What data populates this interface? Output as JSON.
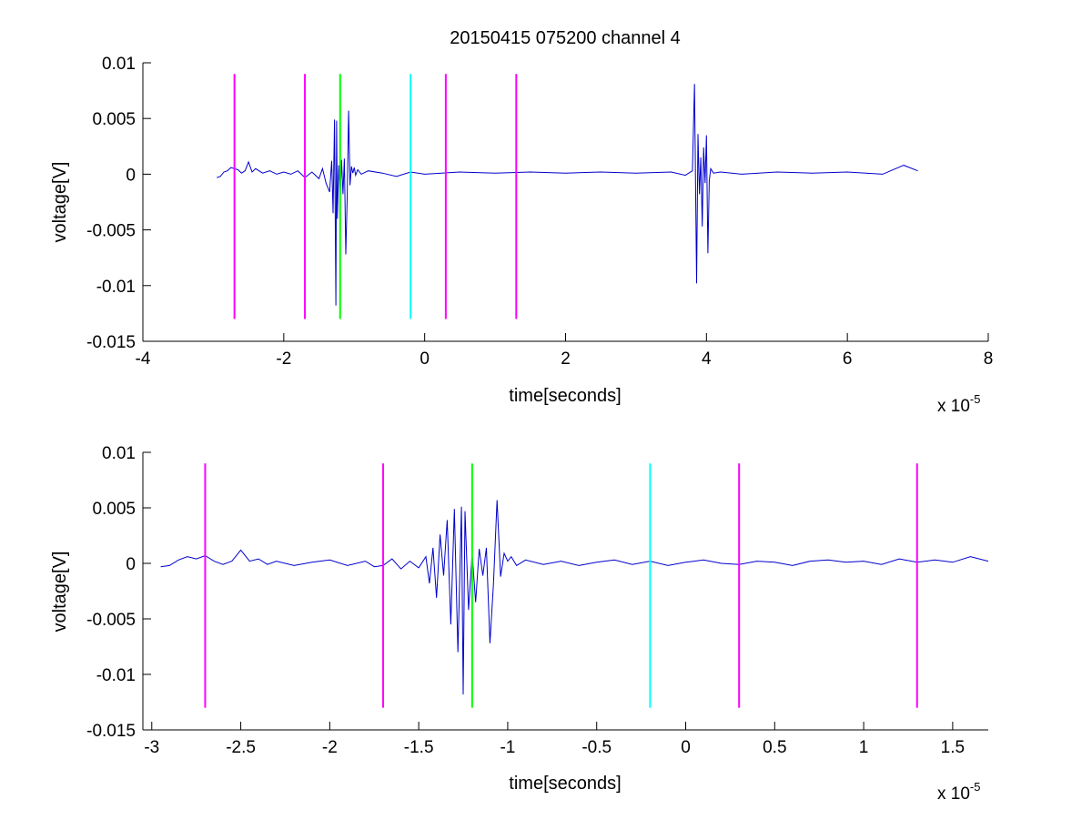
{
  "figure": {
    "background": "#ffffff"
  },
  "chart_data": [
    {
      "type": "line",
      "title": "20150415 075200 channel 4",
      "xlabel": "time[seconds]",
      "ylabel": "voltage[V]",
      "x_exponent_label": "x 10",
      "x_exponent_power": "-5",
      "xlim": [
        -4,
        8
      ],
      "ylim": [
        -0.015,
        0.01
      ],
      "x_unit_scale": 1e-05,
      "xticks": [
        -4,
        -2,
        0,
        2,
        4,
        6,
        8
      ],
      "xtick_labels": [
        "-4",
        "-2",
        "0",
        "2",
        "4",
        "6",
        "8"
      ],
      "yticks": [
        -0.015,
        -0.01,
        -0.005,
        0,
        0.005,
        0.01
      ],
      "ytick_labels": [
        "-0.015",
        "-0.01",
        "-0.005",
        "0",
        "0.005",
        "0.01"
      ],
      "grid": false,
      "series": [
        {
          "color": "#0000cc",
          "x": [
            -2.95,
            -2.9,
            -2.85,
            -2.8,
            -2.75,
            -2.7,
            -2.65,
            -2.6,
            -2.55,
            -2.5,
            -2.45,
            -2.4,
            -2.3,
            -2.2,
            -2.1,
            -2.0,
            -1.9,
            -1.8,
            -1.7,
            -1.6,
            -1.5,
            -1.45,
            -1.4,
            -1.35,
            -1.32,
            -1.3,
            -1.28,
            -1.26,
            -1.25,
            -1.24,
            -1.22,
            -1.2,
            -1.18,
            -1.16,
            -1.14,
            -1.12,
            -1.1,
            -1.08,
            -1.06,
            -1.04,
            -1.02,
            -1.0,
            -0.98,
            -0.95,
            -0.9,
            -0.8,
            -0.6,
            -0.4,
            -0.2,
            0.0,
            0.5,
            1.0,
            1.5,
            2.0,
            2.5,
            3.0,
            3.5,
            3.7,
            3.8,
            3.83,
            3.86,
            3.88,
            3.9,
            3.92,
            3.94,
            3.96,
            3.98,
            4.0,
            4.02,
            4.04,
            4.06,
            4.1,
            4.2,
            4.5,
            5.0,
            5.5,
            6.0,
            6.5,
            6.8,
            7.0
          ],
          "y": [
            -0.0003,
            -0.0002,
            0.0002,
            0.0003,
            0.0006,
            0.0005,
            0.0004,
            0.0001,
            0.0003,
            0.0011,
            0.0002,
            0.0005,
            0.0001,
            0.0003,
            0.0,
            0.0002,
            0.0,
            0.0003,
            -0.0003,
            0.0002,
            -0.0004,
            0.0005,
            -0.0008,
            -0.0016,
            0.0012,
            -0.0035,
            0.0049,
            -0.0118,
            0.0048,
            -0.004,
            0.0008,
            -0.0022,
            0.0013,
            -0.0018,
            0.0014,
            -0.0072,
            -0.0021,
            0.0057,
            -0.001,
            0.0007,
            0.0001,
            0.0006,
            -0.0001,
            0.0004,
            0.0,
            0.0003,
            0.0001,
            -0.0002,
            0.0002,
            0.0,
            0.0002,
            0.0001,
            0.0002,
            0.0001,
            0.0002,
            0.0001,
            0.0002,
            -0.0001,
            0.0003,
            0.0081,
            -0.0098,
            0.0036,
            -0.0018,
            0.0015,
            -0.0047,
            0.0024,
            -0.0008,
            0.0035,
            -0.0071,
            -0.0006,
            0.0005,
            0.0001,
            0.0002,
            0.0,
            0.0002,
            0.0001,
            0.0002,
            0.0,
            0.0008,
            0.0003
          ]
        }
      ],
      "vlines": [
        {
          "x": -2.7,
          "color": "#ff00ff",
          "ymin": -0.013,
          "ymax": 0.009
        },
        {
          "x": -1.7,
          "color": "#ff00ff",
          "ymin": -0.013,
          "ymax": 0.009
        },
        {
          "x": -1.2,
          "color": "#00ff00",
          "ymin": -0.013,
          "ymax": 0.009
        },
        {
          "x": -0.2,
          "color": "#00ffff",
          "ymin": -0.013,
          "ymax": 0.009
        },
        {
          "x": 0.3,
          "color": "#ff00ff",
          "ymin": -0.013,
          "ymax": 0.009
        },
        {
          "x": 1.3,
          "color": "#ff00ff",
          "ymin": -0.013,
          "ymax": 0.009
        }
      ]
    },
    {
      "type": "line",
      "title": "",
      "xlabel": "time[seconds]",
      "ylabel": "voltage[V]",
      "x_exponent_label": "x 10",
      "x_exponent_power": "-5",
      "xlim": [
        -3.05,
        1.7
      ],
      "ylim": [
        -0.015,
        0.01
      ],
      "x_unit_scale": 1e-05,
      "xticks": [
        -3,
        -2.5,
        -2,
        -1.5,
        -1,
        -0.5,
        0,
        0.5,
        1,
        1.5
      ],
      "xtick_labels": [
        "-3",
        "-2.5",
        "-2",
        "-1.5",
        "-1",
        "-0.5",
        "0",
        "0.5",
        "1",
        "1.5"
      ],
      "yticks": [
        -0.015,
        -0.01,
        -0.005,
        0,
        0.005,
        0.01
      ],
      "ytick_labels": [
        "-0.015",
        "-0.01",
        "-0.005",
        "0",
        "0.005",
        "0.01"
      ],
      "grid": false,
      "series": [
        {
          "color": "#0000cc",
          "x": [
            -2.95,
            -2.9,
            -2.85,
            -2.8,
            -2.75,
            -2.7,
            -2.65,
            -2.6,
            -2.55,
            -2.5,
            -2.45,
            -2.4,
            -2.35,
            -2.3,
            -2.2,
            -2.1,
            -2.0,
            -1.9,
            -1.8,
            -1.75,
            -1.7,
            -1.65,
            -1.6,
            -1.55,
            -1.5,
            -1.46,
            -1.44,
            -1.42,
            -1.4,
            -1.38,
            -1.36,
            -1.34,
            -1.32,
            -1.3,
            -1.28,
            -1.26,
            -1.25,
            -1.24,
            -1.22,
            -1.2,
            -1.18,
            -1.16,
            -1.14,
            -1.12,
            -1.1,
            -1.08,
            -1.06,
            -1.04,
            -1.02,
            -1.0,
            -0.98,
            -0.95,
            -0.9,
            -0.8,
            -0.7,
            -0.6,
            -0.5,
            -0.4,
            -0.3,
            -0.2,
            -0.1,
            0.0,
            0.1,
            0.2,
            0.3,
            0.4,
            0.5,
            0.6,
            0.7,
            0.8,
            0.9,
            1.0,
            1.1,
            1.2,
            1.3,
            1.4,
            1.5,
            1.6,
            1.7
          ],
          "y": [
            -0.0003,
            -0.0002,
            0.0003,
            0.0006,
            0.0004,
            0.0007,
            0.0002,
            -0.0001,
            0.0002,
            0.0012,
            0.0002,
            0.0004,
            -0.0001,
            0.0002,
            -0.0002,
            0.0001,
            0.0003,
            -0.0002,
            0.0002,
            -0.0003,
            -0.0002,
            0.0004,
            -0.0005,
            0.0002,
            -0.0004,
            0.0006,
            -0.0018,
            0.0014,
            -0.0031,
            0.0026,
            -0.0011,
            0.0039,
            -0.0055,
            0.0049,
            -0.008,
            0.0051,
            -0.0118,
            0.0047,
            -0.0042,
            0.0009,
            -0.0035,
            0.0013,
            -0.0011,
            0.0014,
            -0.0072,
            -0.0018,
            0.0057,
            -0.0012,
            0.0009,
            0.0002,
            0.0006,
            -0.0002,
            0.0003,
            -0.0001,
            0.0002,
            -0.0002,
            0.0001,
            0.0003,
            -0.0001,
            0.0002,
            -0.0002,
            0.0001,
            0.0003,
            0.0,
            -0.0001,
            0.0002,
            0.0001,
            -0.0002,
            0.0002,
            0.0003,
            0.0001,
            0.0002,
            -0.0001,
            0.0004,
            0.0001,
            0.0003,
            0.0001,
            0.0006,
            0.0002
          ]
        }
      ],
      "vlines": [
        {
          "x": -2.7,
          "color": "#ff00ff",
          "ymin": -0.013,
          "ymax": 0.009
        },
        {
          "x": -1.7,
          "color": "#ff00ff",
          "ymin": -0.013,
          "ymax": 0.009
        },
        {
          "x": -1.2,
          "color": "#00ff00",
          "ymin": -0.013,
          "ymax": 0.009
        },
        {
          "x": -0.2,
          "color": "#00ffff",
          "ymin": -0.013,
          "ymax": 0.009
        },
        {
          "x": 0.3,
          "color": "#ff00ff",
          "ymin": -0.013,
          "ymax": 0.009
        },
        {
          "x": 1.3,
          "color": "#ff00ff",
          "ymin": -0.013,
          "ymax": 0.009
        }
      ]
    }
  ]
}
